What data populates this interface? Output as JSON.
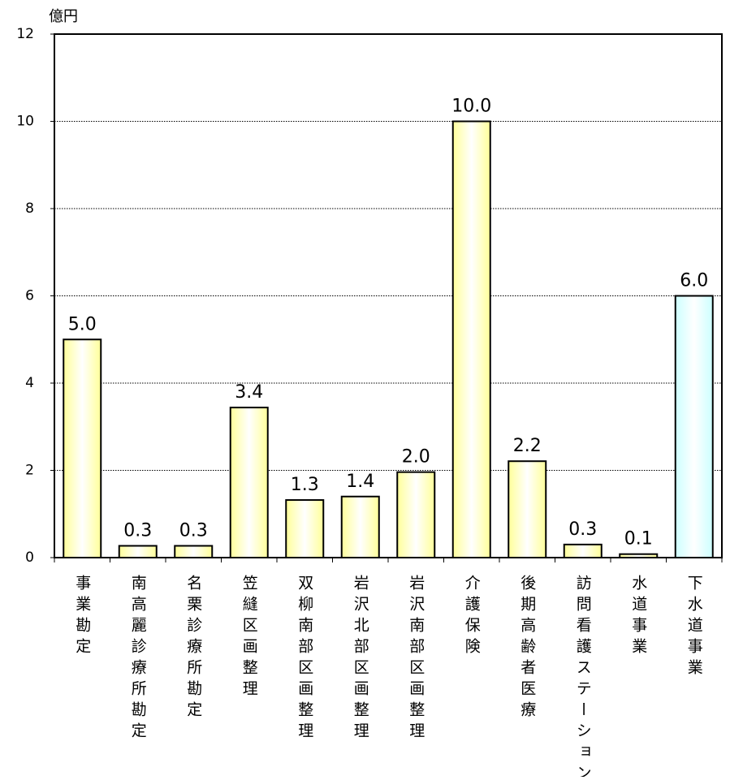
{
  "chart_data": {
    "type": "bar",
    "y_label": "億円",
    "categories": [
      "事業勘定",
      "南高麗診療所勘定",
      "名栗診療所勘定",
      "笠縫区画整理",
      "双柳南部区画整理",
      "岩沢北部区画整理",
      "岩沢南部区画整理",
      "介護保険",
      "後期高齢者医療",
      "訪問看護ステーション",
      "水道事業",
      "下水道事業"
    ],
    "values": [
      5,
      0.27,
      0.27,
      3.44,
      1.32,
      1.4,
      1.96,
      10,
      2.21,
      0.3,
      0.08,
      6
    ],
    "value_labels": [
      "5.0",
      "0.3",
      "0.3",
      "3.4",
      "1.3",
      "1.4",
      "2.0",
      "10.0",
      "2.2",
      "0.3",
      "0.1",
      "6.0"
    ],
    "colors": [
      "#ffff99",
      "#ffff99",
      "#ffff99",
      "#ffff99",
      "#ffff99",
      "#ffff99",
      "#ffff99",
      "#ffff99",
      "#ffff99",
      "#ffff99",
      "#ffff99",
      "#ccffff"
    ],
    "ylim": [
      0,
      12
    ],
    "yticks": [
      0,
      2,
      4,
      6,
      8,
      10,
      12
    ],
    "grid": true
  }
}
